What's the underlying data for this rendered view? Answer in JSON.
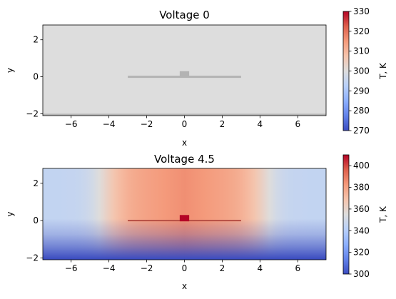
{
  "chart_data": [
    {
      "type": "heatmap",
      "title": "Voltage 0",
      "xlabel": "x",
      "ylabel": "y",
      "xlim": [
        -7.5,
        7.5
      ],
      "ylim": [
        -2.1,
        2.8
      ],
      "xticks": [
        -6,
        -4,
        -2,
        0,
        2,
        4,
        6
      ],
      "yticks": [
        -2,
        0,
        2
      ],
      "colorbar": {
        "label": "T, K",
        "range": [
          270,
          330
        ],
        "ticks": [
          270,
          280,
          290,
          300,
          310,
          320,
          330
        ],
        "colormap": "coolwarm"
      },
      "field": {
        "ambient_temperature": 300,
        "heater_temperature": 300,
        "wire_temperature": 300,
        "substrate_temperature": 300
      },
      "features": {
        "wire": {
          "x": [
            -3,
            3
          ],
          "y": 0
        },
        "heater": {
          "x": [
            -0.25,
            0.25
          ],
          "y": [
            0,
            0.3
          ]
        },
        "substrate": {
          "y": [
            -2.1,
            -2.0
          ]
        }
      },
      "element_colors": {
        "background": "#dddddd",
        "wire": "#b3b3b3",
        "heater": "#b3b3b3",
        "substrate": "#b3b3b3"
      }
    },
    {
      "type": "heatmap",
      "title": "Voltage 4.5",
      "xlabel": "x",
      "ylabel": "y",
      "xlim": [
        -7.5,
        7.5
      ],
      "ylim": [
        -2.1,
        2.8
      ],
      "xticks": [
        -6,
        -4,
        -2,
        0,
        2,
        4,
        6
      ],
      "yticks": [
        -2,
        0,
        2
      ],
      "colorbar": {
        "label": "T, K",
        "range": [
          300,
          410
        ],
        "ticks": [
          300,
          320,
          340,
          360,
          380,
          400
        ],
        "colormap": "coolwarm"
      },
      "field": {
        "ambient_temperature": 345,
        "peak_temperature": 385,
        "heater_temperature": 410,
        "wire_temperature": 395,
        "substrate_temperature": 300
      },
      "features": {
        "wire": {
          "x": [
            -3,
            3
          ],
          "y": 0
        },
        "heater": {
          "x": [
            -0.25,
            0.25
          ],
          "y": [
            0,
            0.3
          ]
        },
        "substrate": {
          "y": [
            -2.1,
            -2.0
          ]
        }
      }
    }
  ]
}
